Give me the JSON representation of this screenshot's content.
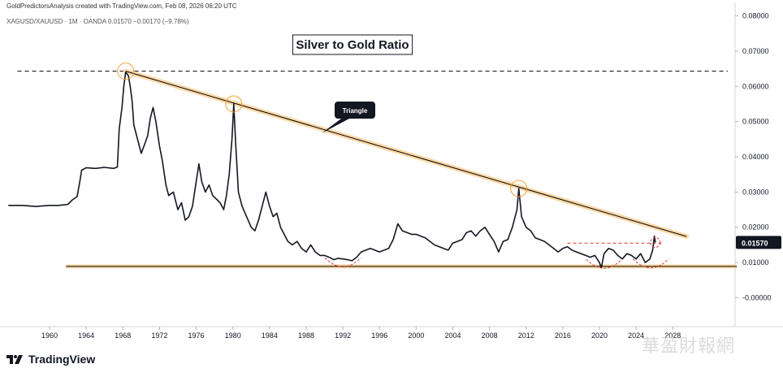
{
  "header": {
    "attribution": "GoldPredictorsAnalysis created with TradingView.com, Feb 08, 2026 06:20 UTC",
    "symbol_line": "XAGUSD/XAUUSD · 1M · OANDA  0.01570  −0.00170 (−9.78%)"
  },
  "footer": {
    "brand": "TradingView",
    "watermark": "華盈財報網"
  },
  "colors": {
    "price_line": "#131722",
    "trend_line": "#000000",
    "trend_glow": "#fbd9a8",
    "circle": "#f5a03a",
    "red_dash": "#e53935",
    "dashed_top": "#000000",
    "price_tag_bg": "#131722"
  },
  "chart_data": {
    "type": "line",
    "title": "Silver to Gold Ratio",
    "xlabel": "",
    "ylabel": "",
    "x_ticks": [
      "1960",
      "1964",
      "1968",
      "1972",
      "1976",
      "1980",
      "1984",
      "1988",
      "1992",
      "1996",
      "2000",
      "2004",
      "2008",
      "2012",
      "2016",
      "2020",
      "2024",
      "2028"
    ],
    "y_ticks": [
      "0.08000",
      "0.07000",
      "0.06000",
      "0.05000",
      "0.04000",
      "0.03000",
      "0.02000",
      "0.01000",
      "-0.00000"
    ],
    "xlim": [
      1955.3,
      2034.8
    ],
    "ylim": [
      -0.0082,
      0.0822
    ],
    "last_value_label": "0.01570",
    "annotation": "Triangle",
    "series": [
      {
        "points": [
          [
            1955.5,
            0.0262
          ],
          [
            1957,
            0.0262
          ],
          [
            1958.5,
            0.0259
          ],
          [
            1960,
            0.0262
          ],
          [
            1961,
            0.0262
          ],
          [
            1962,
            0.0265
          ],
          [
            1962.5,
            0.0278
          ],
          [
            1963,
            0.0287
          ],
          [
            1963.3,
            0.033
          ],
          [
            1963.5,
            0.0362
          ],
          [
            1964,
            0.0369
          ],
          [
            1965,
            0.0367
          ],
          [
            1966,
            0.037
          ],
          [
            1967,
            0.0367
          ],
          [
            1967.4,
            0.0371
          ],
          [
            1967.6,
            0.048
          ],
          [
            1967.9,
            0.054
          ],
          [
            1968.1,
            0.06
          ],
          [
            1968.3,
            0.064
          ],
          [
            1968.6,
            0.063
          ],
          [
            1968.8,
            0.06
          ],
          [
            1969.0,
            0.056
          ],
          [
            1969.2,
            0.049
          ],
          [
            1969.5,
            0.046
          ],
          [
            1969.8,
            0.043
          ],
          [
            1970.0,
            0.041
          ],
          [
            1970.3,
            0.043
          ],
          [
            1970.7,
            0.046
          ],
          [
            1971.0,
            0.051
          ],
          [
            1971.3,
            0.054
          ],
          [
            1971.6,
            0.05
          ],
          [
            1972.0,
            0.043
          ],
          [
            1972.3,
            0.039
          ],
          [
            1972.7,
            0.032
          ],
          [
            1973.0,
            0.029
          ],
          [
            1973.5,
            0.03
          ],
          [
            1974.0,
            0.025
          ],
          [
            1974.4,
            0.027
          ],
          [
            1974.8,
            0.022
          ],
          [
            1975.2,
            0.023
          ],
          [
            1975.6,
            0.026
          ],
          [
            1976.0,
            0.033
          ],
          [
            1976.3,
            0.038
          ],
          [
            1976.6,
            0.033
          ],
          [
            1977.0,
            0.03
          ],
          [
            1977.4,
            0.032
          ],
          [
            1977.8,
            0.029
          ],
          [
            1978.2,
            0.028
          ],
          [
            1978.6,
            0.027
          ],
          [
            1979.0,
            0.025
          ],
          [
            1979.3,
            0.029
          ],
          [
            1979.6,
            0.035
          ],
          [
            1979.9,
            0.045
          ],
          [
            1980.1,
            0.055
          ],
          [
            1980.3,
            0.044
          ],
          [
            1980.6,
            0.03
          ],
          [
            1981.0,
            0.026
          ],
          [
            1981.5,
            0.023
          ],
          [
            1982.0,
            0.02
          ],
          [
            1982.4,
            0.019
          ],
          [
            1982.8,
            0.022
          ],
          [
            1983.2,
            0.026
          ],
          [
            1983.6,
            0.03
          ],
          [
            1984.0,
            0.026
          ],
          [
            1984.4,
            0.023
          ],
          [
            1984.8,
            0.024
          ],
          [
            1985.2,
            0.02
          ],
          [
            1985.6,
            0.018
          ],
          [
            1986.0,
            0.016
          ],
          [
            1986.5,
            0.015
          ],
          [
            1987.0,
            0.016
          ],
          [
            1987.5,
            0.014
          ],
          [
            1988.0,
            0.013
          ],
          [
            1988.5,
            0.015
          ],
          [
            1989.0,
            0.013
          ],
          [
            1989.5,
            0.012
          ],
          [
            1990.0,
            0.012
          ],
          [
            1990.5,
            0.0115
          ],
          [
            1991.0,
            0.0108
          ],
          [
            1991.5,
            0.0112
          ],
          [
            1992.0,
            0.011
          ],
          [
            1992.5,
            0.0108
          ],
          [
            1993.0,
            0.0105
          ],
          [
            1993.5,
            0.0115
          ],
          [
            1994.0,
            0.013
          ],
          [
            1994.5,
            0.0135
          ],
          [
            1995.0,
            0.014
          ],
          [
            1995.5,
            0.0135
          ],
          [
            1996.0,
            0.013
          ],
          [
            1996.5,
            0.0135
          ],
          [
            1997.0,
            0.014
          ],
          [
            1997.5,
            0.0165
          ],
          [
            1998.0,
            0.021
          ],
          [
            1998.5,
            0.019
          ],
          [
            1999.0,
            0.0185
          ],
          [
            1999.5,
            0.018
          ],
          [
            2000.0,
            0.018
          ],
          [
            2000.5,
            0.0175
          ],
          [
            2001.0,
            0.017
          ],
          [
            2001.5,
            0.016
          ],
          [
            2002.0,
            0.015
          ],
          [
            2002.5,
            0.0145
          ],
          [
            2003.0,
            0.014
          ],
          [
            2003.5,
            0.0135
          ],
          [
            2004.0,
            0.0155
          ],
          [
            2004.5,
            0.016
          ],
          [
            2005.0,
            0.0165
          ],
          [
            2005.5,
            0.0185
          ],
          [
            2006.0,
            0.019
          ],
          [
            2006.5,
            0.0175
          ],
          [
            2007.0,
            0.019
          ],
          [
            2007.5,
            0.02
          ],
          [
            2008.0,
            0.018
          ],
          [
            2008.5,
            0.016
          ],
          [
            2009.0,
            0.013
          ],
          [
            2009.5,
            0.016
          ],
          [
            2010.0,
            0.0165
          ],
          [
            2010.5,
            0.02
          ],
          [
            2011.0,
            0.025
          ],
          [
            2011.2,
            0.031
          ],
          [
            2011.5,
            0.023
          ],
          [
            2012.0,
            0.02
          ],
          [
            2012.5,
            0.019
          ],
          [
            2013.0,
            0.017
          ],
          [
            2013.5,
            0.0165
          ],
          [
            2014.0,
            0.016
          ],
          [
            2014.5,
            0.015
          ],
          [
            2015.0,
            0.014
          ],
          [
            2015.5,
            0.013
          ],
          [
            2016.0,
            0.014
          ],
          [
            2016.5,
            0.0145
          ],
          [
            2017.0,
            0.0135
          ],
          [
            2017.5,
            0.013
          ],
          [
            2018.0,
            0.0125
          ],
          [
            2018.5,
            0.012
          ],
          [
            2019.0,
            0.0115
          ],
          [
            2019.5,
            0.012
          ],
          [
            2020.0,
            0.01
          ],
          [
            2020.2,
            0.0085
          ],
          [
            2020.5,
            0.0125
          ],
          [
            2021.0,
            0.014
          ],
          [
            2021.5,
            0.0135
          ],
          [
            2022.0,
            0.012
          ],
          [
            2022.5,
            0.011
          ],
          [
            2023.0,
            0.0125
          ],
          [
            2023.5,
            0.012
          ],
          [
            2024.0,
            0.011
          ],
          [
            2024.5,
            0.0125
          ],
          [
            2025.0,
            0.01
          ],
          [
            2025.5,
            0.011
          ],
          [
            2025.8,
            0.0135
          ],
          [
            2026.0,
            0.0175
          ],
          [
            2026.1,
            0.0157
          ]
        ]
      }
    ],
    "reference_lines": {
      "resistance_top": 0.0643,
      "trend_start": [
        1968.3,
        0.0643
      ],
      "trend_end": [
        2029.5,
        0.0174
      ],
      "support_level": 0.0089,
      "support_span": [
        1961.8,
        2035.0
      ],
      "red_dashed_level": 0.0155,
      "red_dashed_span": [
        2016.5,
        2027.0
      ]
    },
    "highlights": [
      [
        1968.3,
        0.0643
      ],
      [
        1980.1,
        0.055
      ],
      [
        2011.2,
        0.031
      ],
      [
        2026.1,
        0.0157
      ]
    ],
    "bottom_arcs": [
      [
        1992.0,
        0.0104
      ],
      [
        2020.5,
        0.01
      ],
      [
        2025.6,
        0.0101
      ]
    ]
  }
}
